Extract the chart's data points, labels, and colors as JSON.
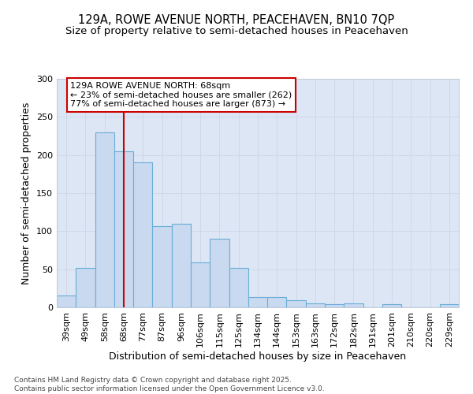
{
  "title_line1": "129A, ROWE AVENUE NORTH, PEACEHAVEN, BN10 7QP",
  "title_line2": "Size of property relative to semi-detached houses in Peacehaven",
  "xlabel": "Distribution of semi-detached houses by size in Peacehaven",
  "ylabel": "Number of semi-detached properties",
  "categories": [
    "39sqm",
    "49sqm",
    "58sqm",
    "68sqm",
    "77sqm",
    "87sqm",
    "96sqm",
    "106sqm",
    "115sqm",
    "125sqm",
    "134sqm",
    "144sqm",
    "153sqm",
    "163sqm",
    "172sqm",
    "182sqm",
    "191sqm",
    "201sqm",
    "210sqm",
    "220sqm",
    "229sqm"
  ],
  "values": [
    16,
    52,
    230,
    205,
    190,
    107,
    110,
    59,
    90,
    52,
    13,
    13,
    9,
    5,
    4,
    5,
    0,
    4,
    0,
    0,
    4
  ],
  "bar_color": "#c8d9f0",
  "bar_edge_color": "#6aaed6",
  "bar_edge_width": 0.8,
  "vline_x_index": 3,
  "vline_color": "#cc0000",
  "vline_linewidth": 1.5,
  "annotation_text": "129A ROWE AVENUE NORTH: 68sqm\n← 23% of semi-detached houses are smaller (262)\n77% of semi-detached houses are larger (873) →",
  "annotation_box_edgecolor": "#cc0000",
  "annotation_box_facecolor": "white",
  "ylim": [
    0,
    300
  ],
  "yticks": [
    0,
    50,
    100,
    150,
    200,
    250,
    300
  ],
  "grid_color": "#d0d8e8",
  "plot_background": "#dce6f5",
  "footer_text": "Contains HM Land Registry data © Crown copyright and database right 2025.\nContains public sector information licensed under the Open Government Licence v3.0.",
  "title_fontsize": 10.5,
  "subtitle_fontsize": 9.5,
  "axis_label_fontsize": 9,
  "tick_fontsize": 8,
  "annotation_fontsize": 8,
  "footer_fontsize": 6.5
}
